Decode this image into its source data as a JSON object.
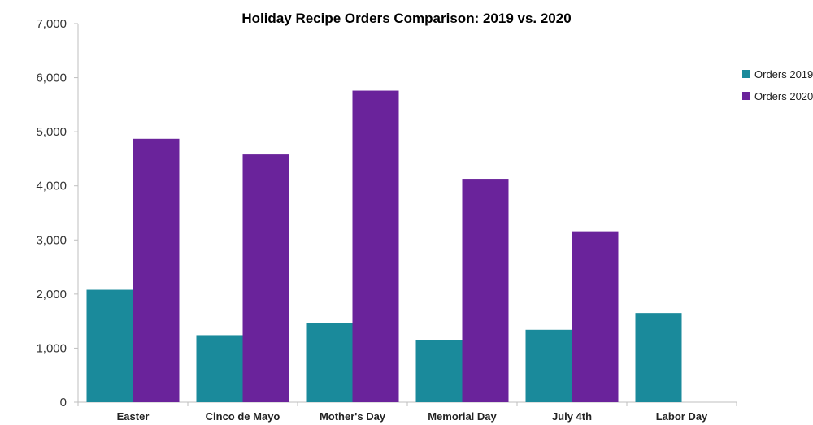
{
  "chart_data": {
    "type": "bar",
    "title": "Holiday Recipe Orders Comparison: 2019 vs. 2020",
    "xlabel": "",
    "ylabel": "",
    "categories": [
      "Easter",
      "Cinco de Mayo",
      "Mother's Day",
      "Memorial Day",
      "July 4th",
      "Labor Day"
    ],
    "series": [
      {
        "name": "Orders 2019",
        "color": "#1a8a9b",
        "values": [
          2080,
          1240,
          1460,
          1150,
          1340,
          1650
        ]
      },
      {
        "name": "Orders 2020",
        "color": "#6a239b",
        "values": [
          4870,
          4580,
          5760,
          4130,
          3160,
          null
        ]
      }
    ],
    "ylim": [
      0,
      7000
    ],
    "yticks": [
      0,
      1000,
      2000,
      3000,
      4000,
      5000,
      6000,
      7000
    ],
    "ytick_labels": [
      "0",
      "1,000",
      "2,000",
      "3,000",
      "4,000",
      "5,000",
      "6,000",
      "7,000"
    ],
    "grid": false,
    "legend": "right"
  }
}
